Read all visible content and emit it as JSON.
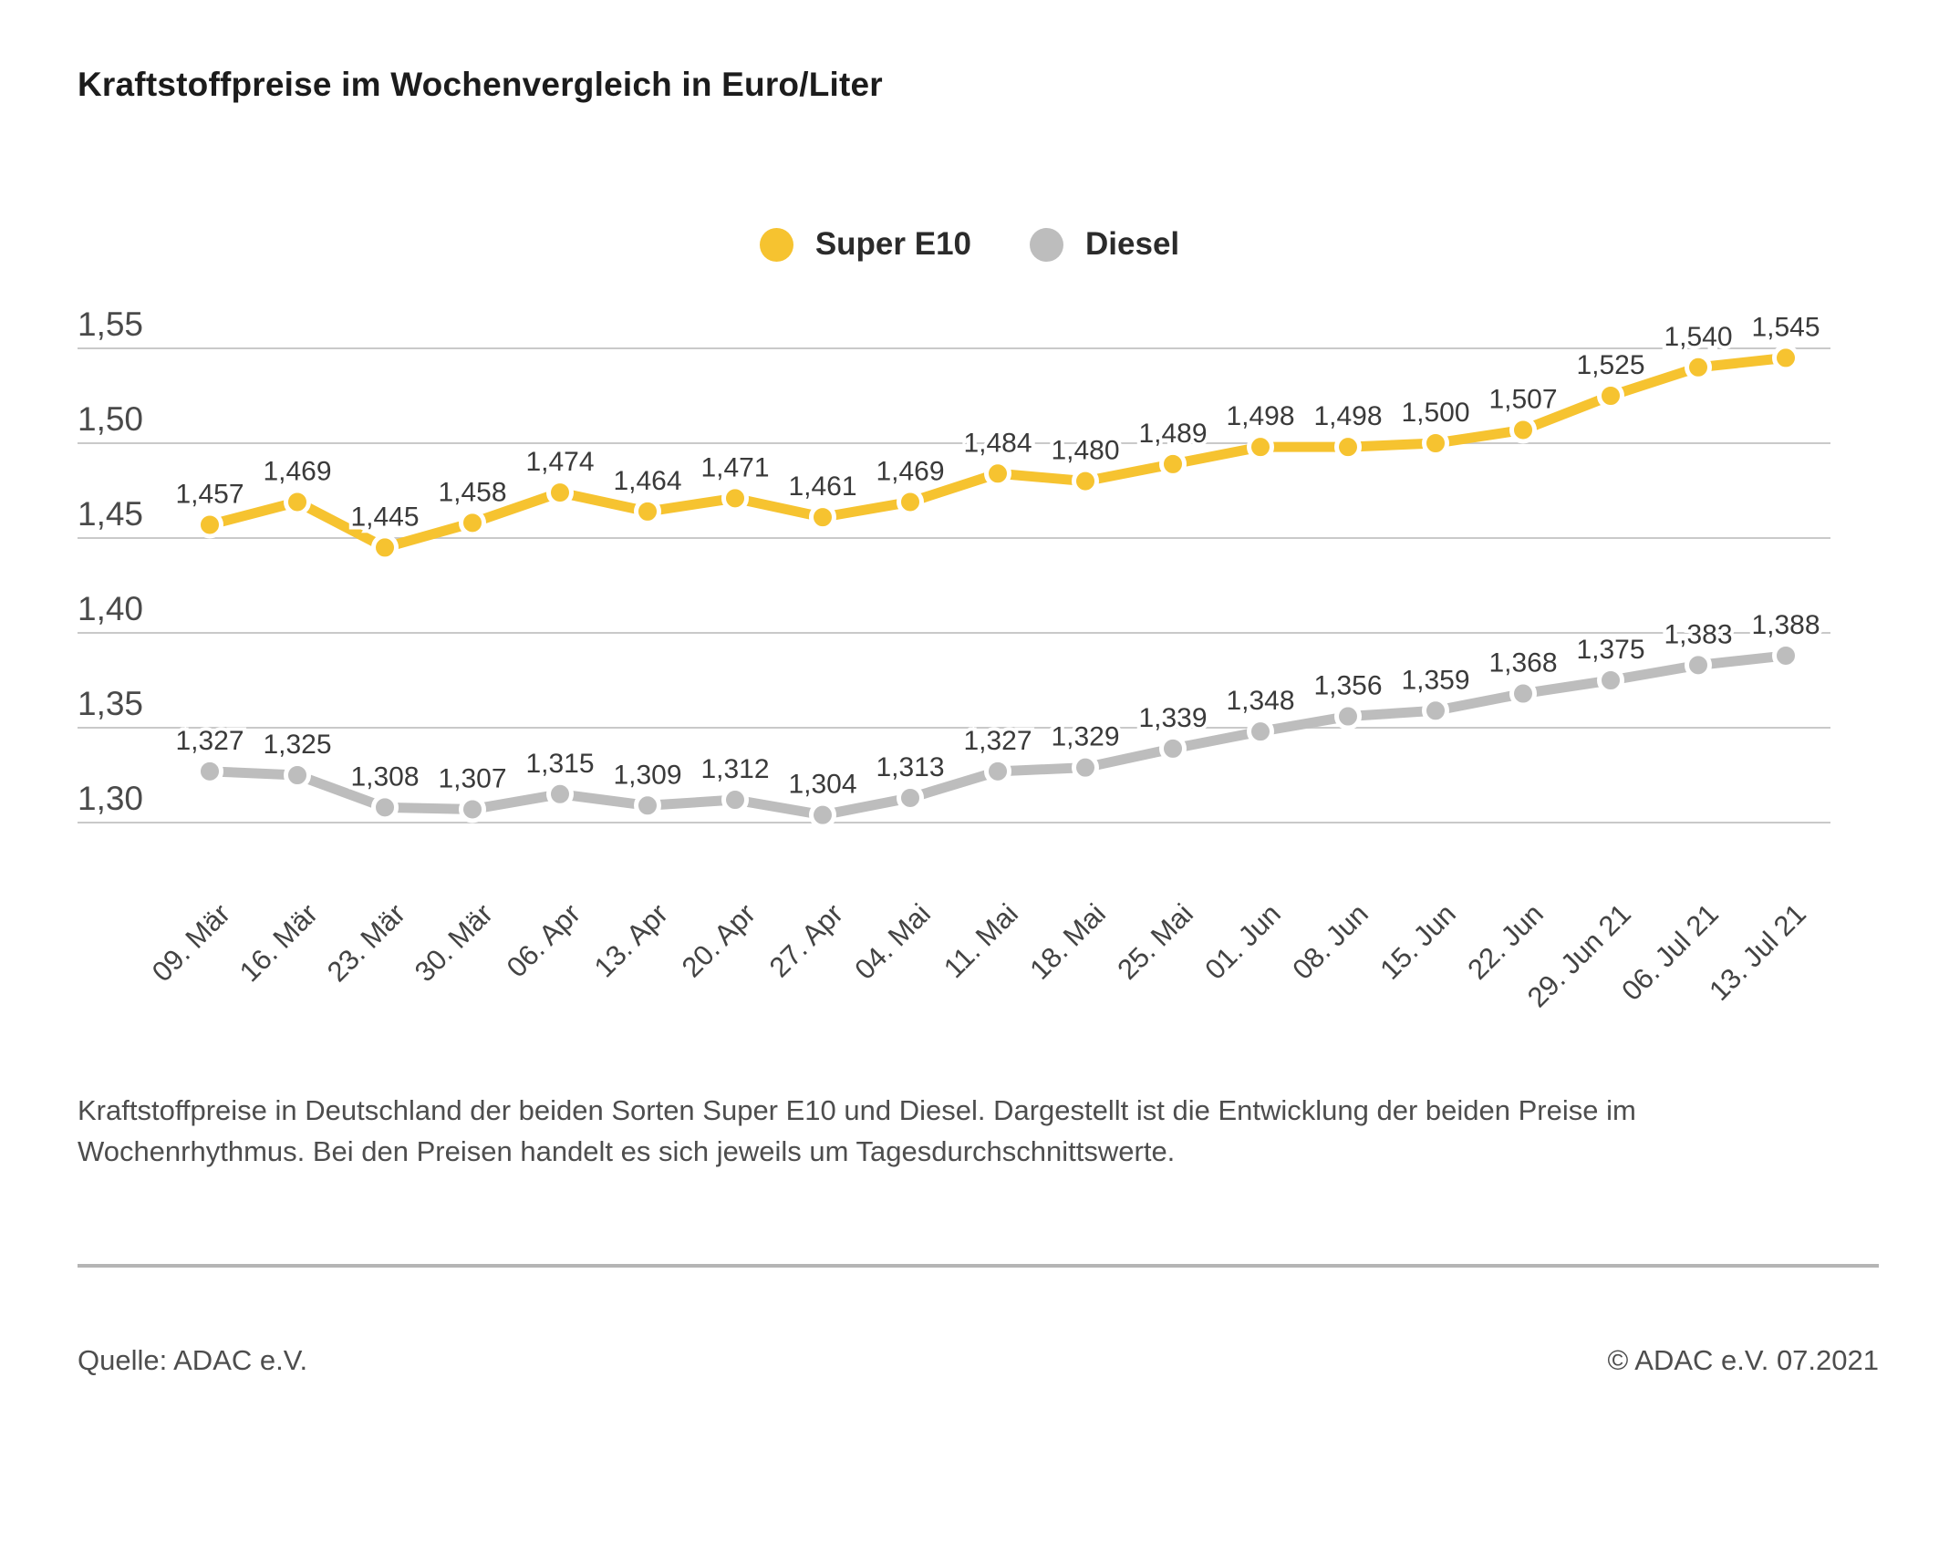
{
  "title": "Kraftstoffpreise im Wochenvergleich in Euro/Liter",
  "legend": {
    "items": [
      {
        "label": "Super E10",
        "color": "#F6C330"
      },
      {
        "label": "Diesel",
        "color": "#BDBDBD"
      }
    ]
  },
  "chart_data": {
    "type": "line",
    "title": "Kraftstoffpreise im Wochenvergleich in Euro/Liter",
    "unit": "Euro/Liter",
    "x": [
      "09. Mär",
      "16. Mär",
      "23. Mär",
      "30. Mär",
      "06. Apr",
      "13. Apr",
      "20. Apr",
      "27. Apr",
      "04. Mai",
      "11. Mai",
      "18. Mai",
      "25. Mai",
      "01. Jun",
      "08. Jun",
      "15. Jun",
      "22. Jun",
      "29. Jun 21",
      "06. Jul 21",
      "13. Jul 21"
    ],
    "series": [
      {
        "name": "Super E10",
        "color": "#F6C330",
        "values": [
          1.457,
          1.469,
          1.445,
          1.458,
          1.474,
          1.464,
          1.471,
          1.461,
          1.469,
          1.484,
          1.48,
          1.489,
          1.498,
          1.498,
          1.5,
          1.507,
          1.525,
          1.54,
          1.545
        ]
      },
      {
        "name": "Diesel",
        "color": "#BDBDBD",
        "values": [
          1.327,
          1.325,
          1.308,
          1.307,
          1.315,
          1.309,
          1.312,
          1.304,
          1.313,
          1.327,
          1.329,
          1.339,
          1.348,
          1.356,
          1.359,
          1.368,
          1.375,
          1.383,
          1.388
        ]
      }
    ],
    "ylim": [
      1.275,
      1.575
    ],
    "yticks": [
      1.3,
      1.35,
      1.4,
      1.45,
      1.5,
      1.55
    ],
    "grid": true,
    "legend_position": "top-center",
    "value_labels": true,
    "decimal_separator": ","
  },
  "description": "Kraftstoffpreise in Deutschland der beiden Sorten Super E10 und Diesel. Dargestellt ist die Entwicklung der beiden Preise im Wochenrhythmus. Bei den Preisen handelt es sich jeweils um Tagesdurchschnittswerte.",
  "footer": {
    "source": "Quelle: ADAC e.V.",
    "copyright": "© ADAC e.V. 07.2021"
  }
}
